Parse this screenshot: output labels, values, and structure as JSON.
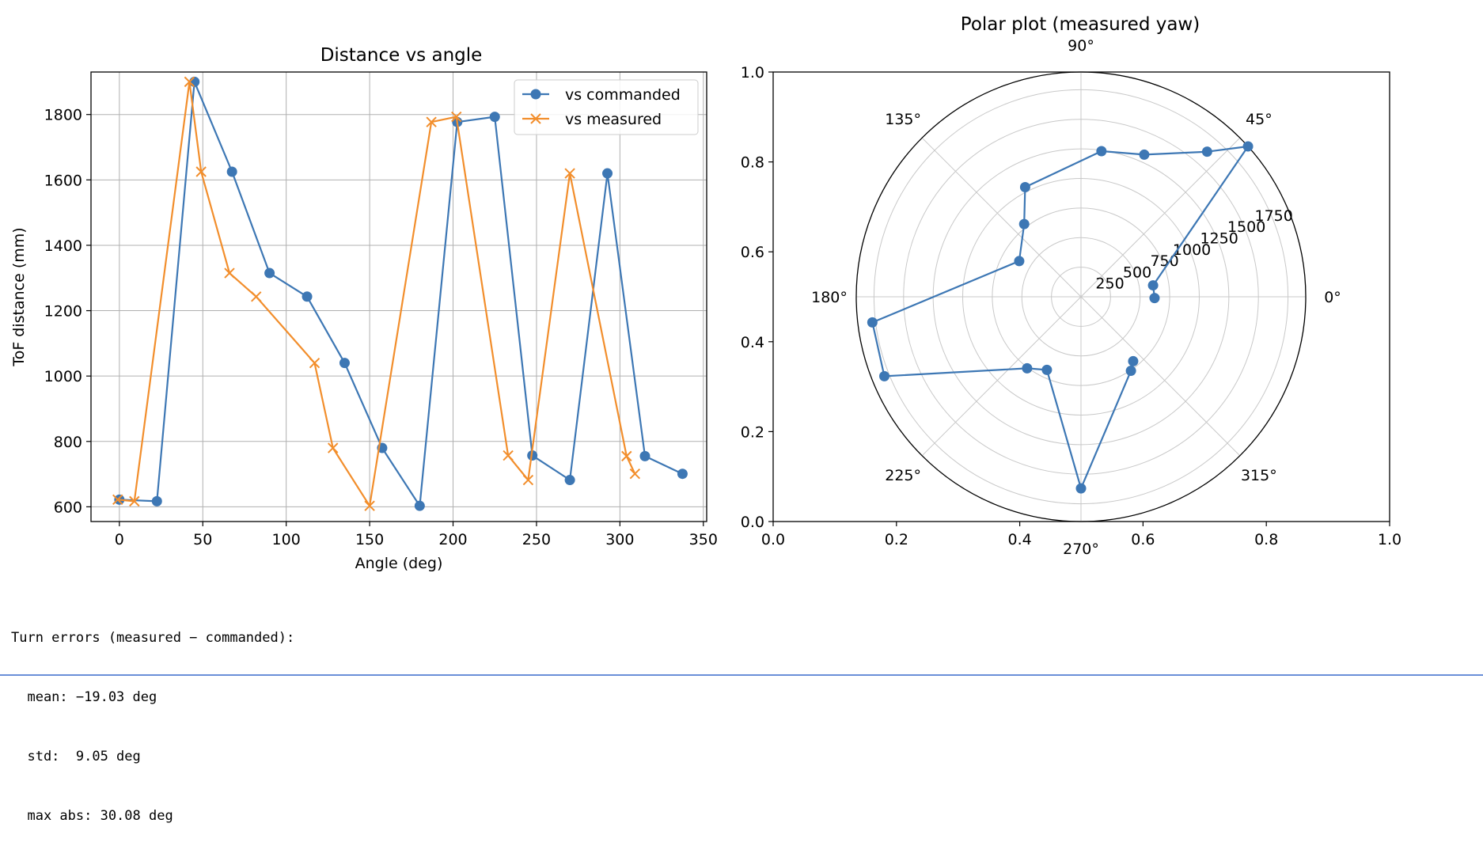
{
  "chart_data": [
    {
      "type": "line",
      "title": "Distance vs angle",
      "xlabel": "Angle (deg)",
      "ylabel": "ToF distance (mm)",
      "xlim": [
        -17,
        352
      ],
      "ylim": [
        555,
        1930
      ],
      "xticks": [
        0,
        50,
        100,
        150,
        200,
        250,
        300,
        350
      ],
      "yticks": [
        600,
        800,
        1000,
        1200,
        1400,
        1600,
        1800
      ],
      "grid": true,
      "legend": "top-right",
      "series": [
        {
          "name": "vs commanded",
          "color": "#3d77b4",
          "marker": "circle",
          "x": [
            0,
            22.5,
            45,
            67.5,
            90,
            112.5,
            135,
            157.5,
            180,
            202.5,
            225,
            247.5,
            270,
            292.5,
            315,
            337.5
          ],
          "y": [
            622,
            617,
            1900,
            1625,
            1315,
            1243,
            1040,
            780,
            603,
            1777,
            1793,
            757,
            682,
            1620,
            755,
            701
          ]
        },
        {
          "name": "vs measured",
          "color": "#f28e2c",
          "marker": "x",
          "x": [
            -1,
            9,
            42,
            49,
            66,
            82,
            117,
            128,
            150,
            187,
            202,
            233,
            245,
            270,
            304,
            309
          ],
          "y": [
            622,
            617,
            1900,
            1625,
            1315,
            1243,
            1040,
            780,
            603,
            1777,
            1793,
            757,
            682,
            1620,
            755,
            701
          ]
        }
      ]
    },
    {
      "type": "scatter",
      "title": "Polar plot (measured yaw)",
      "projection": "polar",
      "cartesian_xticks": [
        "0.0",
        "0.2",
        "0.4",
        "0.6",
        "0.8",
        "1.0"
      ],
      "cartesian_yticks": [
        "0.0",
        "0.2",
        "0.4",
        "0.6",
        "0.8",
        "1.0"
      ],
      "angle_tick_values": [
        0,
        45,
        90,
        135,
        180,
        225,
        270,
        315
      ],
      "angle_ticks": [
        "0°",
        "45°",
        "90°",
        "135°",
        "180°",
        "225°",
        "270°",
        "315°"
      ],
      "radial_ticks": [
        "250",
        "500",
        "750",
        "1000",
        "1250",
        "1500",
        "1750"
      ],
      "radial_tick_values": [
        250,
        500,
        750,
        1000,
        1250,
        1500,
        1750
      ],
      "rmax": 1900,
      "radial_label_angle": 22.5,
      "grid": true,
      "series": [
        {
          "color": "#3d77b4",
          "marker": "circle",
          "theta_deg": [
            -1,
            9,
            42,
            49,
            66,
            82,
            117,
            128,
            150,
            187,
            202,
            233,
            245,
            270,
            304,
            309
          ],
          "r": [
            622,
            617,
            1900,
            1625,
            1315,
            1243,
            1040,
            780,
            603,
            1777,
            1793,
            757,
            682,
            1620,
            755,
            701
          ]
        }
      ]
    }
  ],
  "console": {
    "lines": [
      "Turn errors (measured − commanded):",
      "  mean: −19.03 deg",
      "  std:  9.05 deg",
      "  max abs: 30.08 deg"
    ]
  }
}
